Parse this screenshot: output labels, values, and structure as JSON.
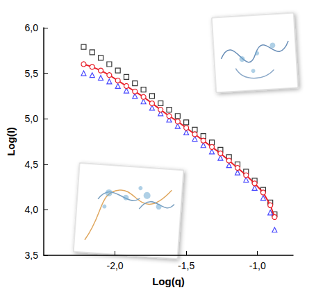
{
  "chart_data": {
    "type": "scatter",
    "xlabel": "Log(q)",
    "ylabel": "Log(I)",
    "x": [
      -2.22,
      -2.16,
      -2.1,
      -2.04,
      -1.98,
      -1.92,
      -1.86,
      -1.8,
      -1.74,
      -1.68,
      -1.62,
      -1.56,
      -1.5,
      -1.44,
      -1.38,
      -1.32,
      -1.26,
      -1.2,
      -1.14,
      -1.08,
      -1.02,
      -0.96,
      -0.91,
      -0.88
    ],
    "series": [
      {
        "color": "#000000",
        "marker": "square",
        "type": "scatter",
        "values": [
          5.79,
          5.73,
          5.67,
          5.6,
          5.53,
          5.46,
          5.39,
          5.32,
          5.25,
          5.17,
          5.1,
          5.03,
          4.96,
          4.88,
          4.81,
          4.74,
          4.66,
          4.58,
          4.5,
          4.42,
          4.32,
          4.22,
          4.08,
          3.95
        ]
      },
      {
        "color": "#e8202a",
        "marker": "circle",
        "type": "line",
        "values": [
          5.6,
          5.57,
          5.53,
          5.48,
          5.42,
          5.36,
          5.3,
          5.24,
          5.17,
          5.1,
          5.03,
          4.97,
          4.9,
          4.83,
          4.76,
          4.69,
          4.62,
          4.54,
          4.46,
          4.38,
          4.29,
          4.19,
          4.05,
          3.92
        ]
      },
      {
        "color": "#1a1aff",
        "marker": "triangle",
        "type": "scatter",
        "values": [
          5.5,
          5.48,
          5.45,
          5.41,
          5.36,
          5.31,
          5.25,
          5.19,
          5.12,
          5.06,
          4.99,
          4.92,
          4.85,
          4.78,
          4.71,
          4.64,
          4.57,
          4.49,
          4.41,
          4.33,
          4.24,
          4.13,
          3.97,
          3.78
        ]
      }
    ],
    "xlim": [
      -2.5,
      -0.75
    ],
    "ylim": [
      3.5,
      6.0
    ],
    "xticks": [
      {
        "value": -2.0,
        "label": "-2,0"
      },
      {
        "value": -1.5,
        "label": "-1,5"
      },
      {
        "value": -1.0,
        "label": "-1,0"
      }
    ],
    "yticks": [
      {
        "value": 3.5,
        "label": "3,5"
      },
      {
        "value": 4.0,
        "label": "4,0"
      },
      {
        "value": 4.5,
        "label": "4,5"
      },
      {
        "value": 5.0,
        "label": "5,0"
      },
      {
        "value": 5.5,
        "label": "5,5"
      },
      {
        "value": 6.0,
        "label": "6,0"
      }
    ],
    "grid": false
  }
}
